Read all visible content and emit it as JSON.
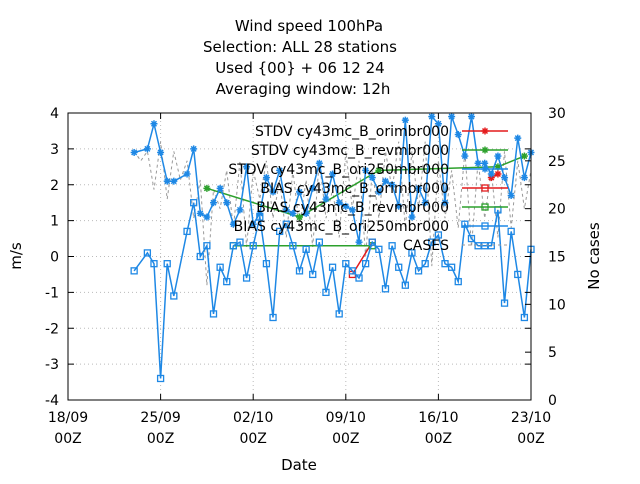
{
  "chart_data": {
    "type": "line",
    "title_lines": [
      "Wind speed 100hPa",
      "Selection: ALL      28 stations",
      "Used {00} + 06 12 24",
      "Averaging window: 12h"
    ],
    "xlabel": "Date",
    "ylabel": "m/s",
    "y2label": "No cases",
    "x_range": [
      "2024-09-18T00",
      "2024-10-23T00"
    ],
    "ylim": [
      -4,
      4
    ],
    "y2lim": [
      0,
      30
    ],
    "y_ticks": [
      "-4",
      "-3",
      "-2",
      "-1",
      "0",
      "1",
      "2",
      "3",
      "4"
    ],
    "y2_ticks": [
      "0",
      "5",
      "10",
      "15",
      "20",
      "25",
      "30"
    ],
    "x_ticks": [
      {
        "date": "2024-09-18T00",
        "line1": "18/09",
        "line2": "00Z"
      },
      {
        "date": "2024-09-25T00",
        "line1": "25/09",
        "line2": "00Z"
      },
      {
        "date": "2024-10-02T00",
        "line1": "02/10",
        "line2": "00Z"
      },
      {
        "date": "2024-10-09T00",
        "line1": "09/10",
        "line2": "00Z"
      },
      {
        "date": "2024-10-16T00",
        "line1": "16/10",
        "line2": "00Z"
      },
      {
        "date": "2024-10-23T00",
        "line1": "23/10",
        "line2": "00Z"
      }
    ],
    "grid": true,
    "legend_position": "top-right",
    "series": [
      {
        "name": "STDV cy43mc_B_orimbr000",
        "color": "#e41a1c",
        "marker": "star",
        "axis": "y1",
        "x": [
          "2024-10-20T00",
          "2024-10-20T12"
        ],
        "y": [
          2.2,
          2.3
        ]
      },
      {
        "name": "STDV cy43mc_B_revmbr000",
        "color": "#2ca02c",
        "marker": "star",
        "axis": "y1",
        "x": [
          "2024-09-28T12",
          "2024-10-05T12",
          "2024-10-11T12",
          "2024-10-20T12",
          "2024-10-22T12"
        ],
        "y": [
          1.9,
          1.1,
          2.4,
          2.5,
          2.8
        ]
      },
      {
        "name": "STDV cy43mc_B_ori250mbr000",
        "color": "#1e88e5",
        "marker": "star",
        "axis": "y1",
        "x": [
          "2024-09-23T00",
          "2024-09-24T00",
          "2024-09-24T12",
          "2024-09-25T00",
          "2024-09-25T12",
          "2024-09-26T00",
          "2024-09-27T00",
          "2024-09-27T12",
          "2024-09-28T00",
          "2024-09-28T12",
          "2024-09-29T00",
          "2024-09-29T12",
          "2024-09-30T00",
          "2024-09-30T12",
          "2024-10-01T00",
          "2024-10-01T12",
          "2024-10-02T00",
          "2024-10-02T12",
          "2024-10-03T00",
          "2024-10-03T12",
          "2024-10-04T00",
          "2024-10-04T12",
          "2024-10-05T00",
          "2024-10-05T12",
          "2024-10-06T00",
          "2024-10-06T12",
          "2024-10-07T00",
          "2024-10-07T12",
          "2024-10-08T00",
          "2024-10-08T12",
          "2024-10-09T00",
          "2024-10-09T12",
          "2024-10-10T00",
          "2024-10-10T12",
          "2024-10-11T00",
          "2024-10-11T12",
          "2024-10-12T00",
          "2024-10-12T12",
          "2024-10-13T00",
          "2024-10-13T12",
          "2024-10-14T00",
          "2024-10-14T12",
          "2024-10-15T00",
          "2024-10-15T12",
          "2024-10-16T00",
          "2024-10-16T12",
          "2024-10-17T00",
          "2024-10-17T12",
          "2024-10-18T00",
          "2024-10-18T12",
          "2024-10-19T00",
          "2024-10-19T12",
          "2024-10-20T00",
          "2024-10-20T12",
          "2024-10-21T00",
          "2024-10-21T12",
          "2024-10-22T00",
          "2024-10-22T12",
          "2024-10-23T00"
        ],
        "y": [
          2.9,
          3.0,
          3.7,
          2.9,
          2.1,
          2.1,
          2.3,
          3.0,
          1.2,
          1.1,
          1.5,
          1.9,
          1.5,
          0.9,
          1.3,
          2.5,
          0.9,
          1.2,
          2.2,
          1.8,
          2.4,
          1.3,
          1.2,
          1.8,
          1.2,
          1.9,
          2.6,
          1.6,
          2.3,
          1.5,
          1.4,
          1.3,
          0.4,
          2.4,
          2.2,
          1.8,
          2.1,
          2.0,
          1.4,
          3.8,
          1.1,
          1.9,
          1.5,
          3.9,
          3.7,
          1.5,
          3.9,
          3.4,
          2.8,
          3.9,
          2.6,
          2.6,
          2.3,
          2.8,
          2.2,
          1.7,
          3.3,
          2.2,
          2.9
        ]
      },
      {
        "name": "BIAS cy43mc_B_orimbr000",
        "color": "#e41a1c",
        "marker": "square",
        "axis": "y1",
        "x": [
          "2024-10-09T12",
          "2024-10-11T00"
        ],
        "y": [
          -0.5,
          0.4
        ]
      },
      {
        "name": "BIAS cy43mc_B_revmbr000",
        "color": "#2ca02c",
        "marker": "square",
        "axis": "y1",
        "x": [
          "2024-09-30T12",
          "2024-10-11T00"
        ],
        "y": [
          0.3,
          0.3
        ]
      },
      {
        "name": "BIAS cy43mc_B_ori250mbr000",
        "color": "#1e88e5",
        "marker": "square",
        "axis": "y1",
        "x": [
          "2024-09-23T00",
          "2024-09-24T00",
          "2024-09-24T12",
          "2024-09-25T00",
          "2024-09-25T12",
          "2024-09-26T00",
          "2024-09-27T00",
          "2024-09-27T12",
          "2024-09-28T00",
          "2024-09-28T12",
          "2024-09-29T00",
          "2024-09-29T12",
          "2024-09-30T00",
          "2024-09-30T12",
          "2024-10-01T00",
          "2024-10-01T12",
          "2024-10-02T00",
          "2024-10-02T12",
          "2024-10-03T00",
          "2024-10-03T12",
          "2024-10-04T00",
          "2024-10-04T12",
          "2024-10-05T00",
          "2024-10-05T12",
          "2024-10-06T00",
          "2024-10-06T12",
          "2024-10-07T00",
          "2024-10-07T12",
          "2024-10-08T00",
          "2024-10-08T12",
          "2024-10-09T00",
          "2024-10-09T12",
          "2024-10-10T00",
          "2024-10-10T12",
          "2024-10-11T00",
          "2024-10-11T12",
          "2024-10-12T00",
          "2024-10-12T12",
          "2024-10-13T00",
          "2024-10-13T12",
          "2024-10-14T00",
          "2024-10-14T12",
          "2024-10-15T00",
          "2024-10-15T12",
          "2024-10-16T00",
          "2024-10-16T12",
          "2024-10-17T00",
          "2024-10-17T12",
          "2024-10-18T00",
          "2024-10-18T12",
          "2024-10-19T00",
          "2024-10-19T12",
          "2024-10-20T00",
          "2024-10-20T12",
          "2024-10-21T00",
          "2024-10-21T12",
          "2024-10-22T00",
          "2024-10-22T12",
          "2024-10-23T00"
        ],
        "y": [
          -0.4,
          0.1,
          -0.2,
          -3.4,
          -0.2,
          -1.1,
          0.7,
          1.5,
          0.0,
          0.3,
          -1.6,
          -0.3,
          -0.7,
          0.3,
          0.4,
          -0.6,
          0.3,
          1.1,
          -0.2,
          -1.7,
          0.7,
          0.9,
          0.3,
          -0.4,
          0.2,
          -0.5,
          0.4,
          -1.0,
          -0.3,
          -1.6,
          -0.2,
          -0.4,
          -0.6,
          -0.2,
          0.4,
          0.2,
          -0.9,
          0.3,
          -0.3,
          -0.8,
          0.1,
          -0.4,
          -0.2,
          0.4,
          0.6,
          -0.2,
          -0.3,
          -0.7,
          0.9,
          0.5,
          0.3,
          0.3,
          0.3,
          1.3,
          -1.3,
          0.7,
          -0.5,
          -1.7,
          0.2
        ]
      },
      {
        "name": "CASES",
        "color": "#999999",
        "marker": "none",
        "dash": true,
        "axis": "y2",
        "x": [
          "2024-09-23T00",
          "2024-09-23T12",
          "2024-09-24T00",
          "2024-09-24T12",
          "2024-09-25T00",
          "2024-09-25T12",
          "2024-09-26T00",
          "2024-09-26T12",
          "2024-09-27T00",
          "2024-09-27T12",
          "2024-09-28T00",
          "2024-09-28T12",
          "2024-09-29T00",
          "2024-09-29T12",
          "2024-09-30T00",
          "2024-09-30T12",
          "2024-10-01T00",
          "2024-10-01T12",
          "2024-10-02T00",
          "2024-10-02T12",
          "2024-10-03T00",
          "2024-10-03T12",
          "2024-10-04T00",
          "2024-10-04T12",
          "2024-10-05T00",
          "2024-10-05T12",
          "2024-10-06T00",
          "2024-10-06T12",
          "2024-10-07T00",
          "2024-10-07T12",
          "2024-10-08T00",
          "2024-10-08T12",
          "2024-10-09T00",
          "2024-10-09T12",
          "2024-10-10T00",
          "2024-10-10T12",
          "2024-10-11T00",
          "2024-10-11T12",
          "2024-10-12T00",
          "2024-10-12T12",
          "2024-10-13T00",
          "2024-10-13T12",
          "2024-10-14T00",
          "2024-10-14T12",
          "2024-10-15T00",
          "2024-10-15T12",
          "2024-10-16T00",
          "2024-10-16T12",
          "2024-10-17T00",
          "2024-10-17T12",
          "2024-10-18T00",
          "2024-10-18T12",
          "2024-10-19T00",
          "2024-10-19T12",
          "2024-10-20T00",
          "2024-10-20T12",
          "2024-10-21T00",
          "2024-10-21T12",
          "2024-10-22T00",
          "2024-10-22T12",
          "2024-10-23T00"
        ],
        "y": [
          26,
          25,
          26,
          22,
          27,
          21,
          26,
          23,
          25,
          19,
          23,
          12,
          22,
          20,
          24,
          18,
          25,
          16,
          24,
          21,
          25,
          19,
          23,
          17,
          24,
          18,
          23,
          16,
          25,
          19,
          22,
          17,
          26,
          20,
          25,
          15,
          24,
          19,
          26,
          22,
          27,
          18,
          26,
          20,
          27,
          14,
          25,
          19,
          24,
          18,
          26,
          16,
          25,
          19,
          24,
          17,
          26,
          18,
          25,
          20,
          24
        ]
      }
    ]
  }
}
